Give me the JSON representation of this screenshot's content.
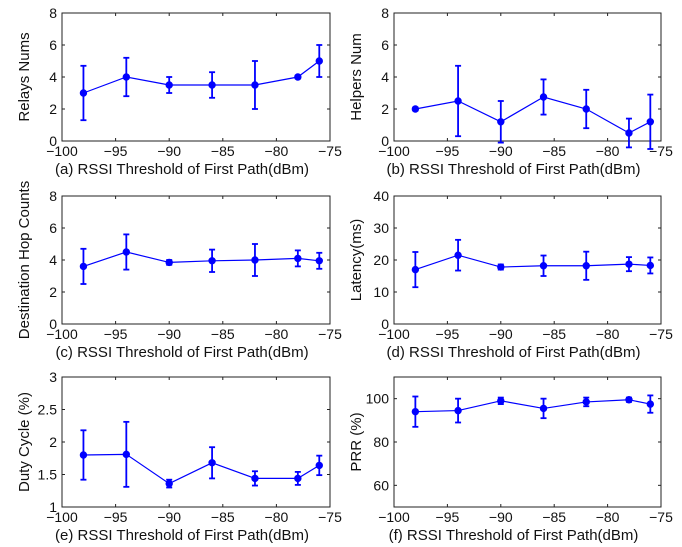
{
  "chart_data": [
    {
      "type": "line",
      "caption": "(a) RSSI Threshold of First Path(dBm)",
      "ylabel": "Relays Nums",
      "xlim": [
        -100,
        -75
      ],
      "ylim": [
        0,
        8
      ],
      "xticks": [
        -100,
        -95,
        -90,
        -85,
        -80,
        -75
      ],
      "yticks": [
        0,
        2,
        4,
        6,
        8
      ],
      "grid": false,
      "color": "#0000ff",
      "series": [
        {
          "x": [
            -98,
            -94,
            -90,
            -86,
            -82,
            -78,
            -76
          ],
          "y": [
            3.0,
            4.0,
            3.5,
            3.5,
            3.5,
            4.0,
            5.0
          ],
          "err": [
            1.7,
            1.2,
            0.5,
            0.8,
            1.5,
            0.1,
            1.0
          ]
        }
      ]
    },
    {
      "type": "line",
      "caption": "(b) RSSI Threshold of First Path(dBm)",
      "ylabel": "Helpers Num",
      "xlim": [
        -100,
        -75
      ],
      "ylim": [
        0,
        8
      ],
      "xticks": [
        -100,
        -95,
        -90,
        -85,
        -80,
        -75
      ],
      "yticks": [
        0,
        2,
        4,
        6,
        8
      ],
      "grid": false,
      "color": "#0000ff",
      "series": [
        {
          "x": [
            -98,
            -94,
            -90,
            -86,
            -82,
            -78,
            -76
          ],
          "y": [
            2.0,
            2.5,
            1.2,
            2.75,
            2.0,
            0.5,
            1.2
          ],
          "err": [
            0.1,
            2.2,
            1.3,
            1.1,
            1.2,
            0.9,
            1.7
          ]
        }
      ]
    },
    {
      "type": "line",
      "caption": "(c) RSSI Threshold of First Path(dBm)",
      "ylabel": "Destination Hop Counts",
      "xlim": [
        -100,
        -75
      ],
      "ylim": [
        0,
        8
      ],
      "xticks": [
        -100,
        -95,
        -90,
        -85,
        -80,
        -75
      ],
      "yticks": [
        0,
        2,
        4,
        6,
        8
      ],
      "grid": false,
      "color": "#0000ff",
      "series": [
        {
          "x": [
            -98,
            -94,
            -90,
            -86,
            -82,
            -78,
            -76
          ],
          "y": [
            3.6,
            4.5,
            3.85,
            3.95,
            4.0,
            4.1,
            3.95
          ],
          "err": [
            1.1,
            1.1,
            0.15,
            0.7,
            1.0,
            0.5,
            0.5
          ]
        }
      ]
    },
    {
      "type": "line",
      "caption": "(d) RSSI Threshold of First Path(dBm)",
      "ylabel": "Latency(ms)",
      "xlim": [
        -100,
        -75
      ],
      "ylim": [
        0,
        40
      ],
      "xticks": [
        -100,
        -95,
        -90,
        -85,
        -80,
        -75
      ],
      "yticks": [
        0,
        10,
        20,
        30,
        40
      ],
      "grid": false,
      "color": "#0000ff",
      "series": [
        {
          "x": [
            -98,
            -94,
            -90,
            -86,
            -82,
            -78,
            -76
          ],
          "y": [
            17.0,
            21.5,
            17.8,
            18.2,
            18.2,
            18.7,
            18.3
          ],
          "err": [
            5.5,
            4.8,
            0.8,
            3.2,
            4.4,
            2.2,
            2.5
          ]
        }
      ]
    },
    {
      "type": "line",
      "caption": "(e) RSSI Threshold of First Path(dBm)",
      "ylabel": "Duty Cycle (%)",
      "xlim": [
        -100,
        -75
      ],
      "ylim": [
        1,
        3
      ],
      "xticks": [
        -100,
        -95,
        -90,
        -85,
        -80,
        -75
      ],
      "yticks": [
        1,
        1.5,
        2,
        2.5,
        3
      ],
      "grid": false,
      "color": "#0000ff",
      "series": [
        {
          "x": [
            -98,
            -94,
            -90,
            -86,
            -82,
            -78,
            -76
          ],
          "y": [
            1.8,
            1.81,
            1.36,
            1.68,
            1.44,
            1.44,
            1.64
          ],
          "err": [
            0.38,
            0.5,
            0.06,
            0.24,
            0.11,
            0.1,
            0.15
          ]
        }
      ]
    },
    {
      "type": "line",
      "caption": "(f) RSSI Threshold of First Path(dBm)",
      "ylabel": "PRR (%)",
      "xlim": [
        -100,
        -75
      ],
      "ylim": [
        50,
        110
      ],
      "xticks": [
        -100,
        -95,
        -90,
        -85,
        -80,
        -75
      ],
      "yticks": [
        60,
        80,
        100
      ],
      "grid": false,
      "color": "#0000ff",
      "series": [
        {
          "x": [
            -98,
            -94,
            -90,
            -86,
            -82,
            -78,
            -76
          ],
          "y": [
            94.0,
            94.5,
            99.0,
            95.5,
            98.5,
            99.5,
            97.5
          ],
          "err": [
            7.0,
            5.5,
            1.5,
            4.5,
            2.0,
            1.0,
            4.0
          ]
        }
      ]
    }
  ]
}
